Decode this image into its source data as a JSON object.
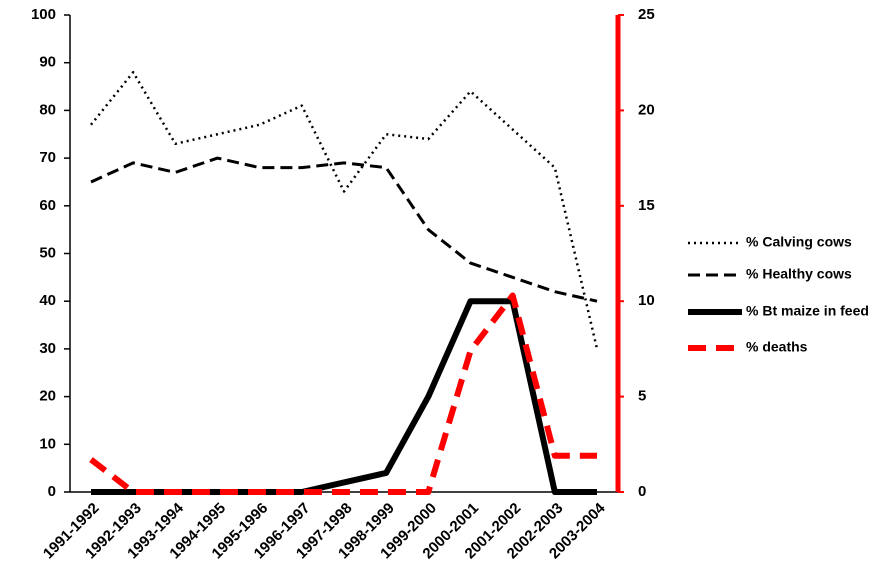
{
  "chart_data": {
    "type": "line",
    "categories": [
      "1991-1992",
      "1992-1993",
      "1993-1994",
      "1994-1995",
      "1995-1996",
      "1996-1997",
      "1997-1998",
      "1998-1999",
      "1999-2000",
      "2000-2001",
      "2001-2002",
      "2002-2003",
      "2003-2004"
    ],
    "series": [
      {
        "name": "% Calving cows",
        "color": "#000000",
        "style": "dotted",
        "values": [
          77,
          88,
          73,
          75,
          77,
          81,
          63,
          75,
          74,
          84,
          76,
          68,
          30
        ]
      },
      {
        "name": "% Healthy cows",
        "color": "#000000",
        "style": "dashed",
        "values": [
          65,
          69,
          67,
          70,
          68,
          68,
          69,
          68,
          55,
          48,
          45,
          42,
          40
        ]
      },
      {
        "name": "% Bt maize in feed",
        "color": "#000000",
        "style": "solid",
        "values": [
          0,
          0,
          0,
          0,
          0,
          0,
          2,
          4,
          20,
          40,
          40,
          0,
          0
        ]
      },
      {
        "name": "% deaths",
        "color": "#ff0000",
        "style": "thick-dashed",
        "axis": "y2",
        "values": [
          1.7,
          0,
          0,
          0,
          0,
          0,
          0,
          0,
          0,
          7.4,
          10.3,
          1.9,
          1.9
        ]
      }
    ],
    "ylim": [
      0,
      100
    ],
    "yticks": [
      0,
      10,
      20,
      30,
      40,
      50,
      60,
      70,
      80,
      90,
      100
    ],
    "y2lim": [
      0,
      25
    ],
    "y2ticks": [
      0,
      5,
      10,
      15,
      20,
      25
    ],
    "y2_axis_color": "#ff0000",
    "legend": "right"
  }
}
